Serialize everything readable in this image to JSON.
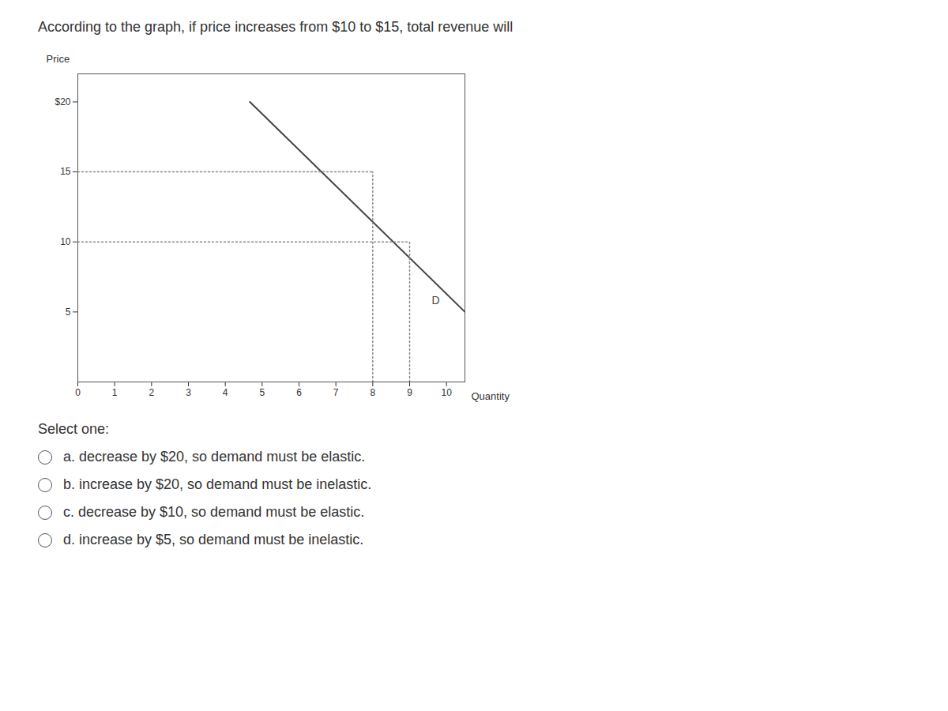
{
  "chart_data": {
    "type": "line",
    "title": "According to the graph, if price increases from $10 to $15, total revenue will",
    "xlabel": "Quantity",
    "ylabel": "Price",
    "xlim": [
      0,
      10.5
    ],
    "ylim": [
      0,
      22
    ],
    "xticks": [
      0,
      1,
      2,
      3,
      4,
      5,
      6,
      7,
      8,
      9,
      10
    ],
    "yticks": [
      5,
      10,
      15,
      {
        "value": 20,
        "label": "$20"
      }
    ],
    "series": [
      {
        "x": [
          4.667,
          10.5
        ],
        "values": [
          20,
          5
        ],
        "color": "#444444",
        "line_style": "solid"
      },
      {
        "x": [
          0,
          8
        ],
        "values": [
          15,
          15
        ],
        "color": "#888888",
        "line_style": "dotted"
      },
      {
        "x": [
          8,
          8
        ],
        "values": [
          0,
          15
        ],
        "color": "#888888",
        "line_style": "dotted"
      },
      {
        "x": [
          0,
          9
        ],
        "values": [
          10,
          10
        ],
        "color": "#888888",
        "line_style": "dotted"
      },
      {
        "x": [
          9,
          9
        ],
        "values": [
          0,
          10
        ],
        "color": "#888888",
        "line_style": "dotted"
      }
    ],
    "annotations": [
      {
        "text": "D",
        "x": 9.6,
        "y": 5.8,
        "color": "#444444"
      },
      {
        "text": "Select one:"
      },
      {
        "text": "a. decrease by $20, so demand must be elastic."
      },
      {
        "text": "b. increase by $20, so demand must be inelastic."
      },
      {
        "text": "c. decrease by $10, so demand must be elastic."
      },
      {
        "text": "d. increase by $5, so demand must be inelastic."
      }
    ]
  }
}
